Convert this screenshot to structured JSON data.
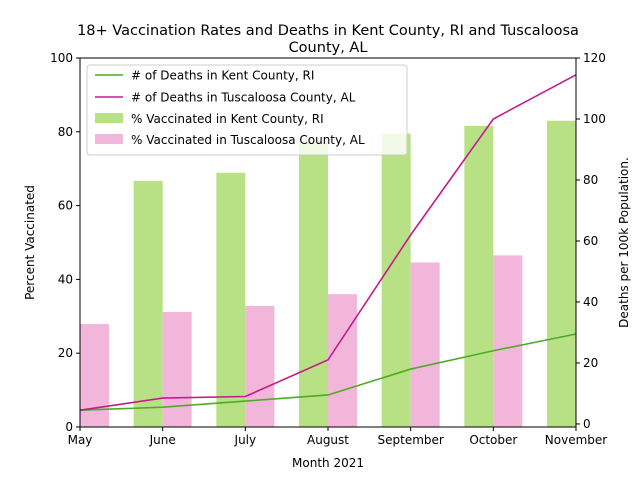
{
  "chart_data": {
    "type": "bar",
    "title": "18+ Vaccination Rates and Deaths in Kent County, RI and Tuscaloosa County, AL",
    "title_lines": [
      "18+ Vaccination Rates and Deaths in Kent County, RI and Tuscaloosa",
      "County, AL"
    ],
    "xlabel": "Month 2021",
    "ylabel_left": "Percent Vaccinated",
    "ylabel_right": "Deaths per 100k Population.",
    "categories": [
      "May",
      "June",
      "July",
      "August",
      "September",
      "October",
      "November"
    ],
    "ylim_left": [
      0,
      100
    ],
    "yticks_left": [
      0,
      20,
      40,
      60,
      80,
      100
    ],
    "ylim_right": [
      -1,
      120
    ],
    "yticks_right": [
      0,
      20,
      40,
      60,
      80,
      100,
      120
    ],
    "grid": false,
    "legend_position": "top-left",
    "bar_series": [
      {
        "name": "% Vaccinated in Kent County, RI",
        "color": "#b8e186",
        "values": [
          null,
          66.7,
          68.9,
          77.5,
          79.5,
          81.6,
          83.0
        ]
      },
      {
        "name": "% Vaccinated in Tuscaloosa County, AL",
        "color": "#f1b6da",
        "values": [
          27.9,
          31.2,
          32.8,
          36.0,
          44.6,
          46.5,
          null
        ]
      }
    ],
    "line_series": [
      {
        "name": "# of Deaths in Kent County, RI",
        "color": "#4dac26",
        "axis": "right",
        "values": [
          4.5,
          5.5,
          7.5,
          9.5,
          18.0,
          24.0,
          29.5
        ]
      },
      {
        "name": "# of Deaths in Tuscaloosa County, AL",
        "color": "#c51b8a",
        "axis": "right",
        "values": [
          4.5,
          8.5,
          9.0,
          21.0,
          62.0,
          100.0,
          114.5
        ]
      }
    ]
  }
}
